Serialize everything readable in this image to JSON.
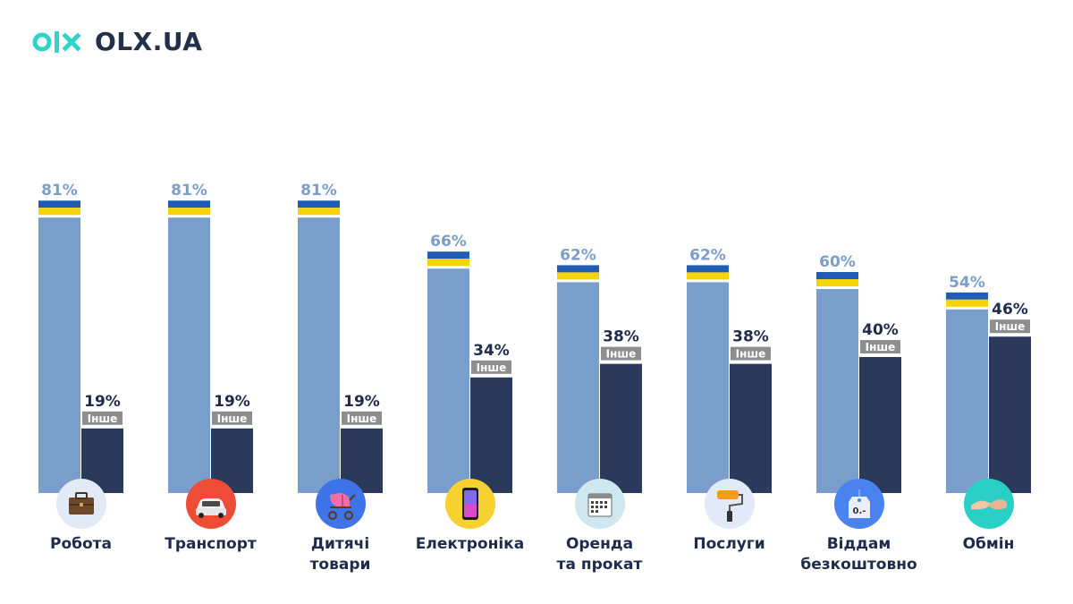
{
  "brand": {
    "name": "OLX.UA"
  },
  "chart_data": {
    "type": "bar",
    "categories": [
      "Робота",
      "Транспорт",
      "Дитячі\nтовари",
      "Електроніка",
      "Оренда\nта прокат",
      "Послуги",
      "Віддам\nбезкоштовно",
      "Обмін"
    ],
    "series": [
      {
        "values": [
          81,
          81,
          81,
          66,
          62,
          62,
          60,
          54
        ],
        "value_labels": [
          "81%",
          "81%",
          "81%",
          "66%",
          "62%",
          "62%",
          "60%",
          "54%"
        ],
        "marker": "ukrainian-flag"
      },
      {
        "name": "Інше",
        "values": [
          19,
          19,
          19,
          34,
          38,
          38,
          40,
          46
        ],
        "value_labels": [
          "19%",
          "19%",
          "19%",
          "34%",
          "38%",
          "38%",
          "40%",
          "46%"
        ]
      }
    ],
    "ylim": [
      0,
      100
    ],
    "grid": false,
    "legend": "none",
    "colors": {
      "series1": "#7a9ecb",
      "series1_label": "#7c9dc9",
      "series2": "#2b3a5a",
      "series2_label": "#1e2b4a",
      "tag_bg": "#8e8e8e",
      "flag_blue": "#1f5db4",
      "flag_yellow": "#f5d40b"
    },
    "icons": [
      "briefcase-icon",
      "car-icon",
      "stroller-icon",
      "smartphone-icon",
      "calendar-icon",
      "paint-roller-icon",
      "price-tag-icon",
      "handshake-icon"
    ],
    "icon_colors": [
      "#e2e9f7",
      "#ef4c37",
      "#3f73e8",
      "#f6d12f",
      "#cfe8f0",
      "#e2e9f7",
      "#4a82f0",
      "#2ad0c6"
    ]
  }
}
